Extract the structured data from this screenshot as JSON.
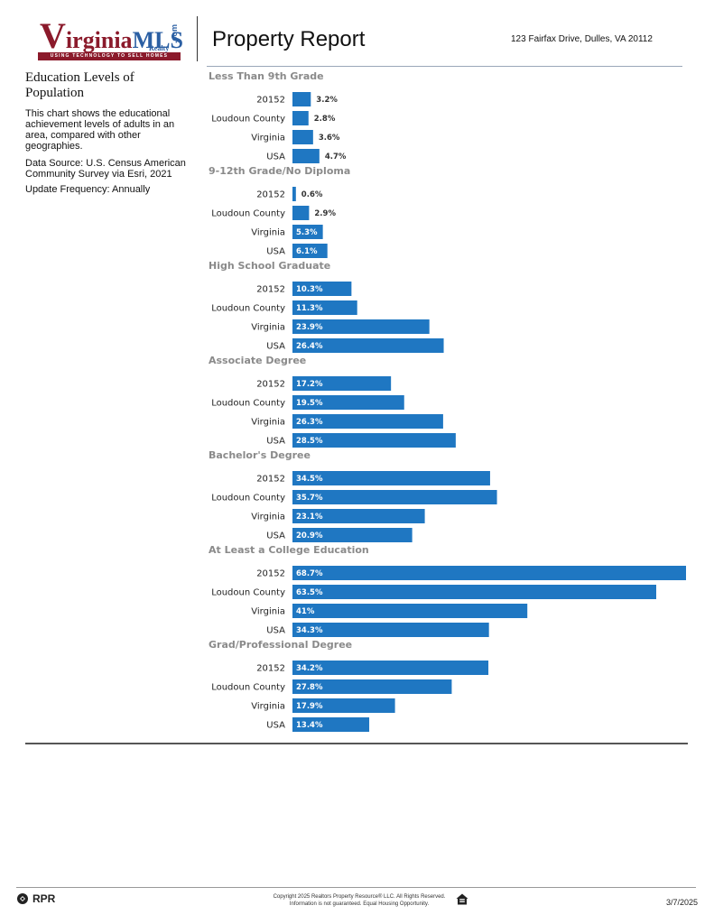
{
  "header": {
    "logo_v": "V",
    "logo_rest": "irginia",
    "logo_mls": "MLS",
    "logo_com": ".com",
    "logo_realty": "Realty",
    "logo_tagline": "USING TECHNOLOGY TO SELL HOMES",
    "title": "Property Report",
    "address": "123 Fairfax Drive, Dulles, VA 20112"
  },
  "sidebar": {
    "title": "Education Levels of Population",
    "description": "This chart shows the educational achievement levels of adults in an area, compared with other geographies.",
    "source": "Data Source: U.S. Census American Community Survey via Esri, 2021",
    "frequency": "Update Frequency: Annually"
  },
  "colors": {
    "bar": "#1f77c2",
    "logo_red": "#8b1a2b",
    "logo_blue": "#2b5fa3"
  },
  "chart_data": {
    "type": "bar",
    "orientation": "horizontal",
    "title": "Education Levels of Population",
    "unit": "%",
    "xlim": [
      0,
      68.7
    ],
    "categories": [
      "20152",
      "Loudoun County",
      "Virginia",
      "USA"
    ],
    "groups": [
      {
        "name": "Less Than 9th Grade",
        "values": [
          3.2,
          2.8,
          3.6,
          4.7
        ],
        "labels": [
          "3.2%",
          "2.8%",
          "3.6%",
          "4.7%"
        ]
      },
      {
        "name": "9-12th Grade/No Diploma",
        "values": [
          0.6,
          2.9,
          5.3,
          6.1
        ],
        "labels": [
          "0.6%",
          "2.9%",
          "5.3%",
          "6.1%"
        ]
      },
      {
        "name": "High School Graduate",
        "values": [
          10.3,
          11.3,
          23.9,
          26.4
        ],
        "labels": [
          "10.3%",
          "11.3%",
          "23.9%",
          "26.4%"
        ]
      },
      {
        "name": "Associate Degree",
        "values": [
          17.2,
          19.5,
          26.3,
          28.5
        ],
        "labels": [
          "17.2%",
          "19.5%",
          "26.3%",
          "28.5%"
        ]
      },
      {
        "name": "Bachelor's Degree",
        "values": [
          34.5,
          35.7,
          23.1,
          20.9
        ],
        "labels": [
          "34.5%",
          "35.7%",
          "23.1%",
          "20.9%"
        ]
      },
      {
        "name": "At Least a College Education",
        "values": [
          68.7,
          63.5,
          41,
          34.3
        ],
        "labels": [
          "68.7%",
          "63.5%",
          "41%",
          "34.3%"
        ]
      },
      {
        "name": "Grad/Professional Degree",
        "values": [
          34.2,
          27.8,
          17.9,
          13.4
        ],
        "labels": [
          "34.2%",
          "27.8%",
          "17.9%",
          "13.4%"
        ]
      }
    ]
  },
  "footer": {
    "rpr": "RPR",
    "copyright_line1": "Copyright 2025 Realtors Property Resource® LLC. All Rights Reserved.",
    "copyright_line2": "Information is not guaranteed. Equal Housing Opportunity.",
    "date": "3/7/2025"
  }
}
